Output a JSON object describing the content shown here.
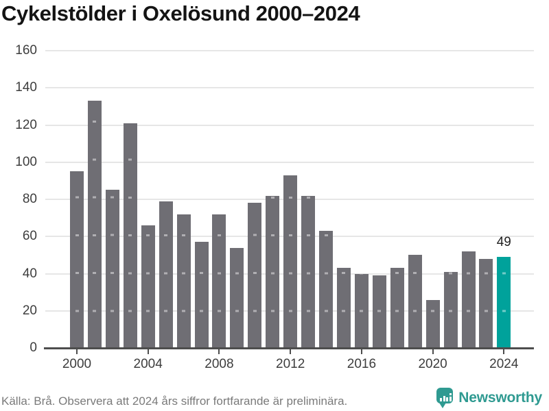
{
  "title": "Cykelstölder i Oxelösund 2000–2024",
  "chart_data": {
    "type": "bar",
    "title": "Cykelstölder i Oxelösund 2000–2024",
    "categories": [
      2000,
      2001,
      2002,
      2003,
      2004,
      2005,
      2006,
      2007,
      2008,
      2009,
      2010,
      2011,
      2012,
      2013,
      2014,
      2015,
      2016,
      2017,
      2018,
      2019,
      2020,
      2021,
      2022,
      2023,
      2024
    ],
    "values": [
      95,
      133,
      85,
      121,
      66,
      79,
      72,
      57,
      72,
      54,
      78,
      82,
      93,
      82,
      63,
      43,
      40,
      39,
      43,
      50,
      26,
      41,
      52,
      48,
      49
    ],
    "xlabel": "",
    "ylabel": "",
    "ylim": [
      0,
      160
    ],
    "yticks": [
      0,
      20,
      40,
      60,
      80,
      100,
      120,
      140,
      160
    ],
    "xtick_years": [
      2000,
      2004,
      2008,
      2012,
      2016,
      2020,
      2024
    ],
    "grid": "horizontal",
    "legend": "none",
    "highlight_category": 2024,
    "highlight_value_label": "49",
    "colors": {
      "bar": "#6f6e74",
      "highlight_bar": "#00a29b",
      "gridline": "#e6e6e6",
      "axis": "#4d4d4d",
      "tick_label": "#3d3d3d",
      "value_label": "#1f1f1f",
      "title": "#141414"
    }
  },
  "footer": {
    "source_note": "Källa: Brå. Observera att 2024 års siffror fortfarande är preliminära.",
    "brand": "Newsworthy",
    "brand_color": "#2f9a91",
    "logo_icon": "newsworthy-pin-bar-chart-icon"
  }
}
